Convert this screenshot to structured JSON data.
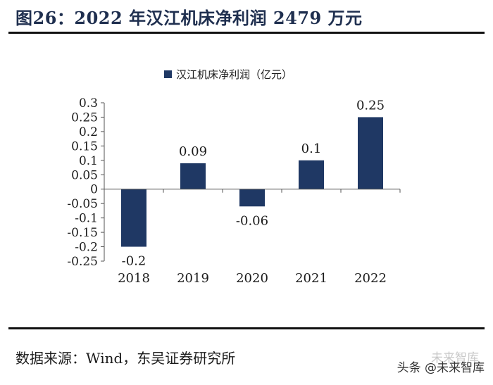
{
  "figure": {
    "title": "图26：2022 年汉江机床净利润 2479 万元",
    "source": "数据来源：Wind，东吴证券研究所",
    "watermark_text": "头条 @未来智库",
    "watermark_ghost": "未来智库"
  },
  "colors": {
    "bar": "#1f3864",
    "axis": "#555555"
  },
  "chart_data": {
    "type": "bar",
    "title": "",
    "xlabel": "",
    "ylabel": "",
    "categories": [
      "2018",
      "2019",
      "2020",
      "2021",
      "2022"
    ],
    "series": [
      {
        "name": "汉江机床净利润（亿元）",
        "values": [
          -0.2,
          0.09,
          -0.06,
          0.1,
          0.25
        ]
      }
    ],
    "data_labels": [
      "-0.2",
      "0.09",
      "-0.06",
      "0.1",
      "0.25"
    ],
    "ylim": [
      -0.25,
      0.3
    ],
    "yticks": [
      0.3,
      0.25,
      0.2,
      0.15,
      0.1,
      0.05,
      0,
      -0.05,
      -0.1,
      -0.15,
      -0.2,
      -0.25
    ],
    "ytick_labels": [
      "0.3",
      "0.25",
      "0.2",
      "0.15",
      "0.1",
      "0.05",
      "0",
      "-0.05",
      "-0.1",
      "-0.15",
      "-0.2",
      "-0.25"
    ],
    "legend": "top-center",
    "grid": false
  }
}
